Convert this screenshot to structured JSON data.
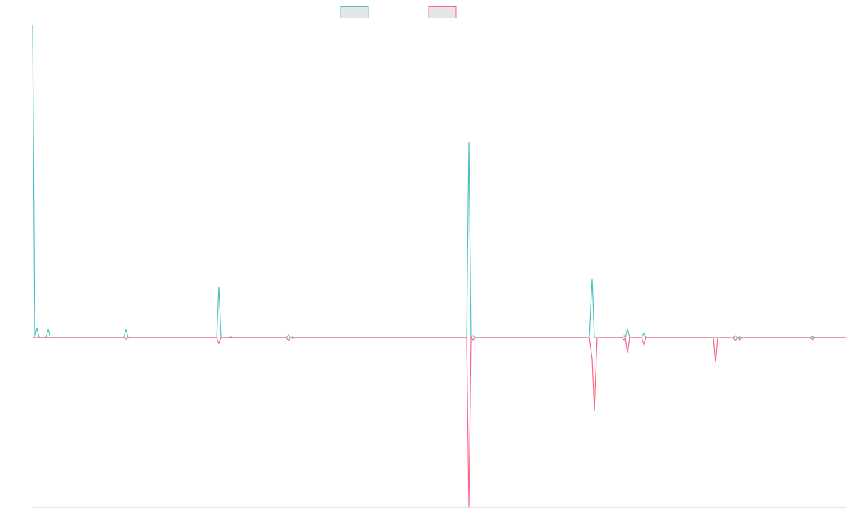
{
  "chart_data": {
    "type": "line",
    "x": [
      0,
      3,
      6,
      9,
      19,
      22,
      25,
      129,
      132,
      135,
      260,
      263,
      266,
      277,
      280,
      283,
      358,
      361,
      364,
      367,
      370,
      613,
      616,
      619,
      622,
      625,
      786,
      790,
      793,
      797,
      832,
      835,
      837,
      840,
      843,
      860,
      863,
      866,
      961,
      964,
      967,
      989,
      992,
      995,
      998,
      1001,
      1098,
      1101,
      1104,
      1149
    ],
    "xlim": [
      0,
      1149
    ],
    "ylim": [
      -239,
      441
    ],
    "series": [
      {
        "color": "#4bc0c0",
        "values": [
          441,
          0,
          14,
          0,
          0,
          12,
          0,
          0,
          12,
          0,
          0,
          72,
          0,
          0,
          1,
          0,
          0,
          4,
          0,
          1,
          0,
          0,
          277,
          0,
          3,
          0,
          0,
          83,
          0,
          0,
          0,
          3,
          0,
          13,
          0,
          0,
          6,
          0,
          0,
          0,
          0,
          0,
          3,
          0,
          1,
          0,
          0,
          2,
          0,
          0
        ]
      },
      {
        "color": "#ff6384",
        "values": [
          0,
          0,
          0,
          0,
          0,
          0,
          0,
          0,
          -2,
          0,
          0,
          -8,
          0,
          0,
          0,
          0,
          0,
          -4,
          0,
          -1,
          0,
          0,
          -239,
          0,
          -3,
          0,
          0,
          -30,
          -103,
          0,
          0,
          -3,
          0,
          -21,
          0,
          0,
          -9,
          0,
          0,
          -35,
          0,
          0,
          -4,
          0,
          -3,
          0,
          0,
          -3,
          0,
          0
        ]
      }
    ],
    "legend_fill": "#e6e6e6"
  }
}
